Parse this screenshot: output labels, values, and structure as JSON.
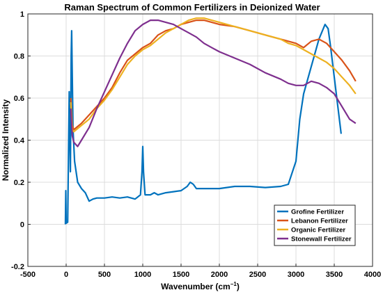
{
  "chart_data": {
    "type": "line",
    "title": "Raman Spectrum of Common Fertilizers in Deionized Water",
    "xlabel": "Wavenumber (cm",
    "xlabel_sup": "−1",
    "xlabel_close": ")",
    "ylabel": "Normalized Intensity",
    "xlim": [
      -500,
      4000
    ],
    "ylim": [
      -0.2,
      1
    ],
    "x_ticks": [
      -500,
      0,
      500,
      1000,
      1500,
      2000,
      2500,
      3000,
      3500,
      4000
    ],
    "x_tick_labels": [
      "-500",
      "0",
      "500",
      "1000",
      "1500",
      "2000",
      "2500",
      "3000",
      "3500",
      "4000"
    ],
    "y_ticks": [
      -0.2,
      0,
      0.2,
      0.4,
      0.6,
      0.8,
      1
    ],
    "y_tick_labels": [
      "-0.2",
      "0",
      "0.2",
      "0.4",
      "0.6",
      "0.8",
      "1"
    ],
    "grid": true,
    "legend_position": "bottom-right",
    "series": [
      {
        "name": "Grofine Fertilizer",
        "color": "#0072BD",
        "points": [
          [
            -10,
            0
          ],
          [
            -5,
            0.16
          ],
          [
            0,
            0.005
          ],
          [
            20,
            0.01
          ],
          [
            40,
            0.63
          ],
          [
            55,
            0.25
          ],
          [
            65,
            0.8
          ],
          [
            72,
            0.92
          ],
          [
            80,
            0.7
          ],
          [
            90,
            0.45
          ],
          [
            110,
            0.3
          ],
          [
            150,
            0.2
          ],
          [
            200,
            0.17
          ],
          [
            250,
            0.15
          ],
          [
            300,
            0.11
          ],
          [
            350,
            0.12
          ],
          [
            400,
            0.125
          ],
          [
            500,
            0.125
          ],
          [
            600,
            0.13
          ],
          [
            700,
            0.125
          ],
          [
            800,
            0.13
          ],
          [
            900,
            0.12
          ],
          [
            970,
            0.14
          ],
          [
            990,
            0.25
          ],
          [
            1000,
            0.37
          ],
          [
            1010,
            0.25
          ],
          [
            1030,
            0.14
          ],
          [
            1100,
            0.14
          ],
          [
            1150,
            0.15
          ],
          [
            1200,
            0.14
          ],
          [
            1300,
            0.15
          ],
          [
            1400,
            0.155
          ],
          [
            1500,
            0.16
          ],
          [
            1580,
            0.18
          ],
          [
            1620,
            0.2
          ],
          [
            1660,
            0.19
          ],
          [
            1700,
            0.17
          ],
          [
            1800,
            0.17
          ],
          [
            1900,
            0.17
          ],
          [
            2000,
            0.17
          ],
          [
            2200,
            0.18
          ],
          [
            2400,
            0.18
          ],
          [
            2600,
            0.175
          ],
          [
            2800,
            0.18
          ],
          [
            2900,
            0.19
          ],
          [
            3000,
            0.3
          ],
          [
            3050,
            0.5
          ],
          [
            3100,
            0.62
          ],
          [
            3200,
            0.75
          ],
          [
            3300,
            0.88
          ],
          [
            3380,
            0.95
          ],
          [
            3420,
            0.93
          ],
          [
            3450,
            0.85
          ],
          [
            3500,
            0.7
          ],
          [
            3550,
            0.55
          ],
          [
            3590,
            0.43
          ]
        ]
      },
      {
        "name": "Lebanon Fertilizer",
        "color": "#D95319",
        "points": [
          [
            60,
            0.6
          ],
          [
            80,
            0.47
          ],
          [
            100,
            0.45
          ],
          [
            200,
            0.48
          ],
          [
            300,
            0.52
          ],
          [
            400,
            0.56
          ],
          [
            500,
            0.6
          ],
          [
            600,
            0.65
          ],
          [
            700,
            0.72
          ],
          [
            800,
            0.78
          ],
          [
            900,
            0.81
          ],
          [
            1000,
            0.84
          ],
          [
            1100,
            0.86
          ],
          [
            1200,
            0.9
          ],
          [
            1300,
            0.92
          ],
          [
            1400,
            0.93
          ],
          [
            1500,
            0.95
          ],
          [
            1600,
            0.96
          ],
          [
            1700,
            0.97
          ],
          [
            1800,
            0.97
          ],
          [
            1900,
            0.96
          ],
          [
            2000,
            0.95
          ],
          [
            2200,
            0.94
          ],
          [
            2400,
            0.92
          ],
          [
            2600,
            0.9
          ],
          [
            2800,
            0.88
          ],
          [
            3000,
            0.86
          ],
          [
            3100,
            0.84
          ],
          [
            3200,
            0.87
          ],
          [
            3300,
            0.88
          ],
          [
            3400,
            0.86
          ],
          [
            3500,
            0.82
          ],
          [
            3600,
            0.78
          ],
          [
            3700,
            0.73
          ],
          [
            3780,
            0.68
          ]
        ]
      },
      {
        "name": "Organic Fertilizer",
        "color": "#EDB120",
        "points": [
          [
            60,
            0.58
          ],
          [
            80,
            0.45
          ],
          [
            100,
            0.44
          ],
          [
            200,
            0.47
          ],
          [
            300,
            0.5
          ],
          [
            400,
            0.55
          ],
          [
            500,
            0.59
          ],
          [
            600,
            0.64
          ],
          [
            700,
            0.7
          ],
          [
            800,
            0.76
          ],
          [
            900,
            0.8
          ],
          [
            1000,
            0.83
          ],
          [
            1100,
            0.85
          ],
          [
            1200,
            0.88
          ],
          [
            1300,
            0.91
          ],
          [
            1400,
            0.93
          ],
          [
            1500,
            0.95
          ],
          [
            1600,
            0.97
          ],
          [
            1700,
            0.98
          ],
          [
            1800,
            0.98
          ],
          [
            1900,
            0.97
          ],
          [
            2000,
            0.96
          ],
          [
            2200,
            0.94
          ],
          [
            2400,
            0.92
          ],
          [
            2600,
            0.9
          ],
          [
            2800,
            0.88
          ],
          [
            2900,
            0.86
          ],
          [
            3000,
            0.85
          ],
          [
            3100,
            0.83
          ],
          [
            3200,
            0.81
          ],
          [
            3300,
            0.79
          ],
          [
            3400,
            0.77
          ],
          [
            3500,
            0.74
          ],
          [
            3600,
            0.7
          ],
          [
            3700,
            0.66
          ],
          [
            3780,
            0.62
          ]
        ]
      },
      {
        "name": "Stonewall Fertilizer",
        "color": "#7E2F8E",
        "points": [
          [
            60,
            0.55
          ],
          [
            80,
            0.42
          ],
          [
            100,
            0.39
          ],
          [
            150,
            0.37
          ],
          [
            200,
            0.4
          ],
          [
            300,
            0.46
          ],
          [
            400,
            0.55
          ],
          [
            500,
            0.63
          ],
          [
            600,
            0.71
          ],
          [
            700,
            0.79
          ],
          [
            800,
            0.86
          ],
          [
            900,
            0.92
          ],
          [
            1000,
            0.95
          ],
          [
            1100,
            0.97
          ],
          [
            1200,
            0.97
          ],
          [
            1300,
            0.96
          ],
          [
            1400,
            0.95
          ],
          [
            1500,
            0.93
          ],
          [
            1600,
            0.91
          ],
          [
            1700,
            0.89
          ],
          [
            1800,
            0.86
          ],
          [
            1900,
            0.84
          ],
          [
            2000,
            0.82
          ],
          [
            2200,
            0.79
          ],
          [
            2400,
            0.76
          ],
          [
            2600,
            0.72
          ],
          [
            2800,
            0.69
          ],
          [
            2900,
            0.67
          ],
          [
            3000,
            0.66
          ],
          [
            3100,
            0.66
          ],
          [
            3200,
            0.68
          ],
          [
            3300,
            0.67
          ],
          [
            3400,
            0.65
          ],
          [
            3500,
            0.62
          ],
          [
            3600,
            0.56
          ],
          [
            3700,
            0.5
          ],
          [
            3780,
            0.48
          ]
        ]
      }
    ]
  }
}
